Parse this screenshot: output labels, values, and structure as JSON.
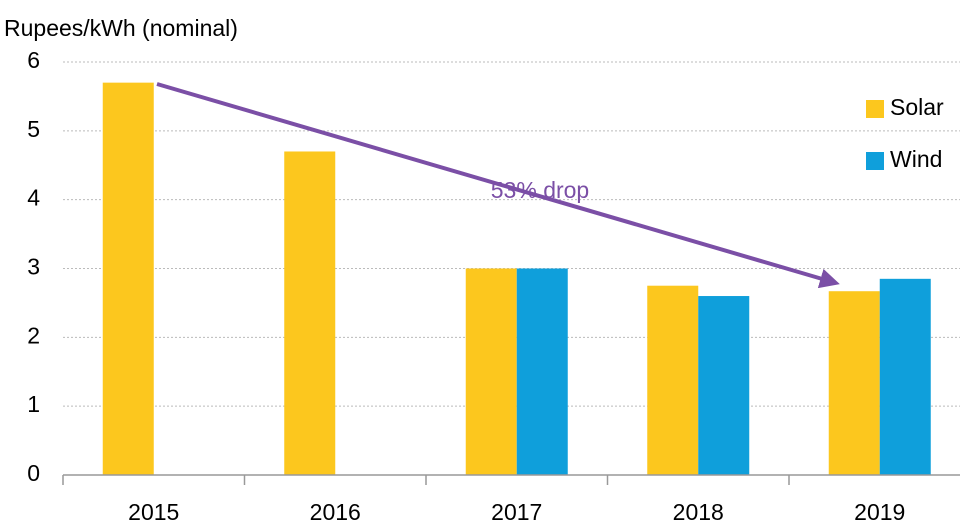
{
  "chart_data": {
    "type": "bar",
    "y_axis_label": "Rupees/kWh (nominal)",
    "annotation": "53% drop",
    "categories": [
      "2015",
      "2016",
      "2017",
      "2018",
      "2019"
    ],
    "series": [
      {
        "name": "Solar",
        "color": "#fcc71e",
        "values": [
          5.7,
          4.7,
          3.0,
          2.75,
          2.67
        ]
      },
      {
        "name": "Wind",
        "color": "#0f9fdb",
        "values": [
          null,
          null,
          3.0,
          2.6,
          2.85
        ]
      }
    ],
    "ylim": [
      0,
      6
    ],
    "yticks": [
      0,
      1,
      2,
      3,
      4,
      5,
      6
    ],
    "grid": true,
    "legend": "right"
  }
}
